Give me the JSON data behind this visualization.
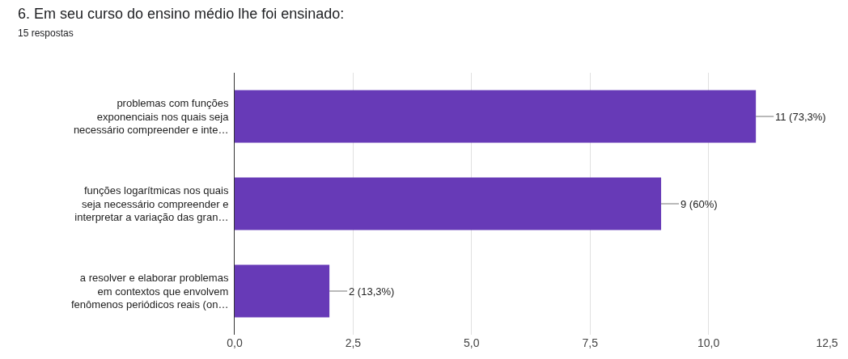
{
  "chart_data": {
    "type": "bar",
    "orientation": "horizontal",
    "title": "6. Em seu curso do ensino médio lhe foi ensinado:",
    "subtitle": "15 respostas",
    "categories": [
      "problemas com funções\nexponenciais nos quais seja\nnecessário compreender e inte…",
      "funções logarítmicas nos quais\nseja necessário compreender e\ninterpretar a variação das gran…",
      "a resolver e elaborar problemas\nem contextos que envolvem\nfenômenos periódicos reais (on…"
    ],
    "values": [
      11,
      9,
      2
    ],
    "value_labels": [
      "11 (73,3%)",
      "9 (60%)",
      "2 (13,3%)"
    ],
    "color": "#673ab7",
    "xlim": [
      0,
      12.5
    ],
    "xticks": [
      {
        "value": 0,
        "label": "0,0"
      },
      {
        "value": 2.5,
        "label": "2,5"
      },
      {
        "value": 5,
        "label": "5,0"
      },
      {
        "value": 7.5,
        "label": "7,5"
      },
      {
        "value": 10,
        "label": "10,0"
      },
      {
        "value": 12.5,
        "label": "12,5"
      }
    ],
    "grid": "x",
    "legend": false
  }
}
